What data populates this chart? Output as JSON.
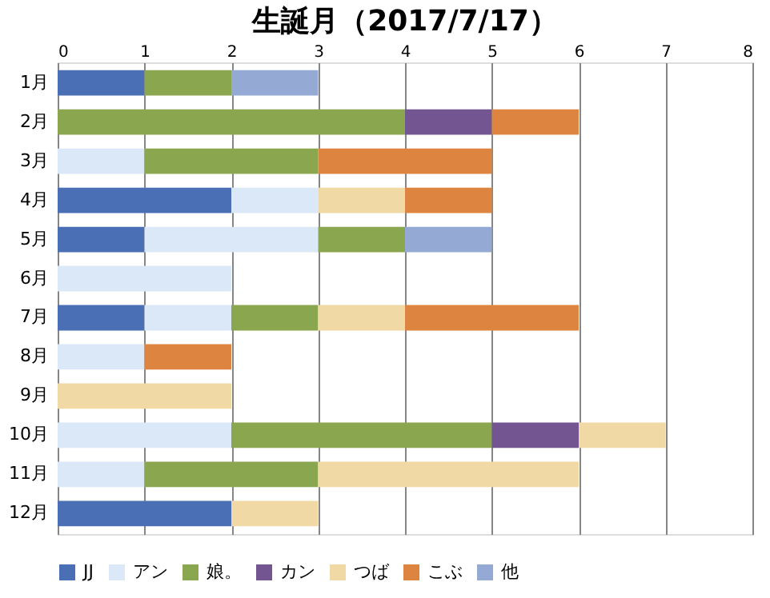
{
  "chart_data": {
    "type": "bar",
    "title": "生誕月（2017/7/17）",
    "orientation": "horizontal",
    "stacked": true,
    "categories": [
      "1月",
      "2月",
      "3月",
      "4月",
      "5月",
      "6月",
      "7月",
      "8月",
      "9月",
      "10月",
      "11月",
      "12月"
    ],
    "series": [
      {
        "name": "JJ",
        "color": "#4a6fb5",
        "values": [
          1,
          null,
          null,
          2,
          1,
          null,
          1,
          null,
          null,
          null,
          null,
          2
        ]
      },
      {
        "name": "アン",
        "color": "#dbe8f8",
        "values": [
          null,
          null,
          1,
          1,
          2,
          2,
          1,
          1,
          null,
          2,
          1,
          null
        ]
      },
      {
        "name": "娘。",
        "color": "#8aa64e",
        "values": [
          1,
          4,
          2,
          null,
          1,
          null,
          1,
          null,
          null,
          3,
          2,
          null
        ]
      },
      {
        "name": "カン",
        "color": "#735592",
        "values": [
          null,
          1,
          null,
          null,
          null,
          null,
          null,
          null,
          null,
          1,
          null,
          null
        ]
      },
      {
        "name": "つば",
        "color": "#f0d9a4",
        "values": [
          null,
          null,
          null,
          1,
          null,
          null,
          1,
          null,
          2,
          1,
          3,
          1
        ]
      },
      {
        "name": "こぶ",
        "color": "#dd8440",
        "values": [
          null,
          1,
          2,
          1,
          null,
          null,
          2,
          1,
          null,
          null,
          null,
          null
        ]
      },
      {
        "name": "他",
        "color": "#94aad4",
        "values": [
          1,
          null,
          null,
          null,
          1,
          null,
          null,
          null,
          null,
          null,
          null,
          null
        ]
      }
    ],
    "xlim": [
      0,
      8
    ],
    "xticks": [
      0,
      1,
      2,
      3,
      4,
      5,
      6,
      7,
      8
    ],
    "grid": "x",
    "legend": "bottom"
  }
}
